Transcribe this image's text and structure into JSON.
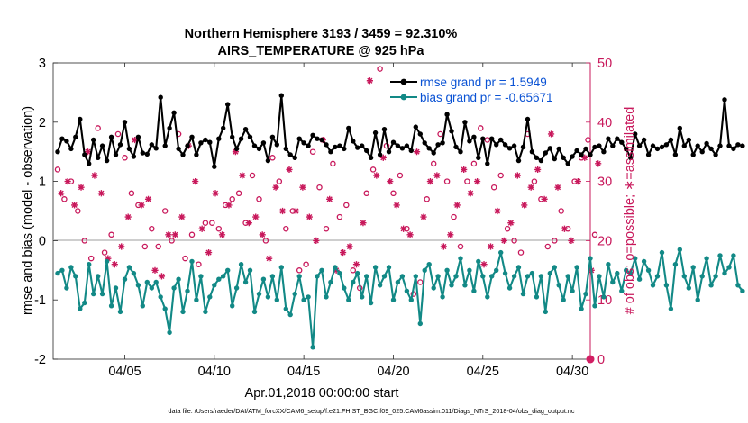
{
  "chart_data": {
    "type": "line",
    "title_line1": "Northern Hemisphere 3193 / 3459 = 92.310%",
    "title_line2": "AIRS_TEMPERATURE @ 925 hPa",
    "xlabel": "Apr.01,2018 00:00:00 start",
    "ylabel_left": "rmse and bias (model - observation)",
    "ylabel_right": "# of obs: o=possible; ∗=assimilated",
    "xlim": [
      1,
      31
    ],
    "ylim_left": [
      -2,
      3
    ],
    "ylim_right": [
      0,
      50
    ],
    "x_ticks": [
      5,
      10,
      15,
      20,
      25,
      30
    ],
    "x_tick_labels": [
      "04/05",
      "04/10",
      "04/15",
      "04/20",
      "04/25",
      "04/30"
    ],
    "y_ticks_left": [
      -2,
      -1,
      0,
      1,
      2,
      3
    ],
    "y_tick_labels_left": [
      "-2",
      "-1",
      "0",
      "1",
      "2",
      "3"
    ],
    "y_ticks_right": [
      0,
      10,
      20,
      30,
      40,
      50
    ],
    "y_tick_labels_right": [
      "0",
      "10",
      "20",
      "30",
      "40",
      "50"
    ],
    "series": [
      {
        "name": "rmse grand pr = 1.5949",
        "axis": "left",
        "color": "#000000",
        "marker": "filled-diamond",
        "t0": 1.25,
        "dt": 0.25,
        "values": [
          1.5,
          1.72,
          1.68,
          1.55,
          1.75,
          2.05,
          1.45,
          1.3,
          1.7,
          1.4,
          1.6,
          1.35,
          1.75,
          1.45,
          1.62,
          2.0,
          1.55,
          1.42,
          1.75,
          1.48,
          1.46,
          1.62,
          1.56,
          2.42,
          1.6,
          1.9,
          2.16,
          1.55,
          1.45,
          1.6,
          1.75,
          1.45,
          1.65,
          1.7,
          1.66,
          1.25,
          1.72,
          1.9,
          2.3,
          1.75,
          1.55,
          1.72,
          1.88,
          1.75,
          1.6,
          1.55,
          1.65,
          1.35,
          1.75,
          1.62,
          2.45,
          1.55,
          1.45,
          1.4,
          1.72,
          1.65,
          1.6,
          1.78,
          1.72,
          1.7,
          1.62,
          1.5,
          1.58,
          1.6,
          1.55,
          1.9,
          1.68,
          1.57,
          1.6,
          1.52,
          1.4,
          1.82,
          1.45,
          1.88,
          1.5,
          1.66,
          1.6,
          1.56,
          1.6,
          1.52,
          1.92,
          1.8,
          1.65,
          1.56,
          1.48,
          1.62,
          1.65,
          2.13,
          1.85,
          1.58,
          1.5,
          2.0,
          1.68,
          1.75,
          1.4,
          1.72,
          1.3,
          1.72,
          1.62,
          1.7,
          1.62,
          1.56,
          1.6,
          1.35,
          1.58,
          2.05,
          1.5,
          1.4,
          1.35,
          1.48,
          1.56,
          1.38,
          1.55,
          1.4,
          1.3,
          1.42,
          1.52,
          1.45,
          1.55,
          1.45,
          1.58,
          1.6,
          1.5,
          1.72,
          1.6,
          1.72,
          1.66,
          1.55,
          1.4,
          1.8,
          1.6,
          1.7,
          1.45,
          1.6,
          1.55,
          1.58,
          1.62,
          1.7,
          1.45,
          1.9,
          1.6,
          1.7,
          1.45,
          1.6,
          1.5,
          1.64,
          1.55,
          1.45,
          1.6,
          2.38,
          1.6,
          1.55,
          1.62,
          1.6
        ]
      },
      {
        "name": "bias grand pr = -0.65671",
        "axis": "left",
        "color": "#128986",
        "marker": "filled-circle",
        "t0": 1.25,
        "dt": 0.25,
        "values": [
          -0.55,
          -0.5,
          -0.8,
          -0.45,
          -0.6,
          -1.15,
          -1.05,
          -0.4,
          -0.9,
          -0.6,
          -0.9,
          -0.35,
          -1.1,
          -0.8,
          -1.2,
          -0.65,
          -0.45,
          -0.55,
          -0.75,
          -1.1,
          -0.7,
          -0.8,
          -0.7,
          -0.95,
          -1.15,
          -1.55,
          -0.8,
          -0.65,
          -1.2,
          -0.85,
          -0.35,
          -1.0,
          -0.6,
          -1.2,
          -0.95,
          -0.75,
          -0.65,
          -0.6,
          -0.5,
          -1.1,
          -0.8,
          -0.4,
          -0.7,
          -0.5,
          -1.2,
          -0.9,
          -0.65,
          -0.95,
          -0.6,
          -1.0,
          -0.45,
          -1.15,
          -1.25,
          -0.9,
          -0.6,
          -1.0,
          -0.95,
          -1.8,
          -0.6,
          -0.5,
          -0.95,
          -0.7,
          -0.45,
          -0.55,
          -0.8,
          -1.0,
          -0.7,
          -0.55,
          -0.95,
          -0.6,
          -1.05,
          -0.45,
          -0.75,
          -0.6,
          -0.45,
          -1.0,
          -0.7,
          -0.6,
          -0.85,
          -1.0,
          -0.6,
          -1.4,
          -0.5,
          -0.4,
          -0.8,
          -0.6,
          -0.95,
          -0.5,
          -0.75,
          -0.6,
          -0.3,
          -0.75,
          -0.5,
          -0.85,
          -0.35,
          -0.6,
          -0.95,
          -0.6,
          -0.5,
          -0.2,
          -0.55,
          -0.8,
          -0.6,
          -0.45,
          -0.9,
          -0.6,
          -0.55,
          -0.95,
          -0.6,
          -1.2,
          -0.55,
          -0.45,
          -0.75,
          -1.0,
          -0.6,
          -0.85,
          -0.45,
          -1.15,
          -0.9,
          -0.3,
          -1.1,
          -0.6,
          -0.95,
          -0.4,
          -0.7,
          -0.55,
          -0.85,
          -0.5,
          -0.55,
          -0.3,
          -0.65,
          -0.35,
          -0.5,
          -0.75,
          -0.6,
          -0.2,
          -0.75,
          -1.15,
          -0.4,
          -0.15,
          -0.6,
          -0.8,
          -0.45,
          -1.0,
          -0.6,
          -0.3,
          -0.75,
          -0.6,
          -0.25,
          -0.55,
          -0.45,
          -0.25,
          -0.75,
          -0.85
        ]
      },
      {
        "name": "obs possible",
        "axis": "right",
        "color": "#c8185b",
        "marker": "open-circle",
        "legend": false,
        "t0": 1.25,
        "dt": 0.375,
        "values": [
          32,
          27,
          30,
          25,
          20,
          17,
          39,
          18,
          21,
          38,
          34,
          28,
          26,
          19,
          22,
          19,
          25,
          20,
          38,
          17,
          21,
          16,
          23,
          23,
          22,
          26,
          27,
          28,
          23,
          31,
          27,
          20,
          34,
          30,
          22,
          25,
          15,
          16,
          35,
          29,
          22,
          33,
          24,
          26,
          15,
          12,
          28,
          32,
          49,
          36,
          28,
          31,
          22,
          11,
          13,
          27,
          33,
          38,
          30,
          24,
          19,
          30,
          33,
          39,
          37,
          29,
          31,
          22,
          20,
          18,
          38,
          30,
          27,
          19,
          20,
          25,
          22,
          30,
          34,
          37,
          21
        ]
      },
      {
        "name": "obs assimilated",
        "axis": "right",
        "color": "#c8185b",
        "marker": "asterisk",
        "legend": false,
        "t0": 1.4375,
        "dt": 0.375,
        "values": [
          28,
          30,
          26,
          29,
          35,
          31,
          28,
          17,
          16,
          19,
          24,
          37,
          26,
          27,
          15,
          14,
          21,
          21,
          24,
          36,
          30,
          22,
          18,
          28,
          21,
          26,
          35,
          31,
          23,
          24,
          21,
          17,
          29,
          25,
          32,
          25,
          29,
          24,
          20,
          37,
          27,
          15,
          18,
          19,
          16,
          23,
          47,
          31,
          34,
          30,
          26,
          22,
          21,
          35,
          24,
          30,
          31,
          19,
          21,
          26,
          32,
          28,
          30,
          16,
          19,
          25,
          20,
          23,
          31,
          26,
          29,
          32,
          27,
          38,
          29,
          22,
          20,
          30,
          34,
          15,
          33
        ]
      }
    ]
  },
  "footer_text": "data file: /Users/raeder/DAI/ATM_forcXX/CAM6_setup/f.e21.FHIST_BGC.f09_025.CAM6assim.011/Diags_NTrS_2018-04/obs_diag_output.nc"
}
